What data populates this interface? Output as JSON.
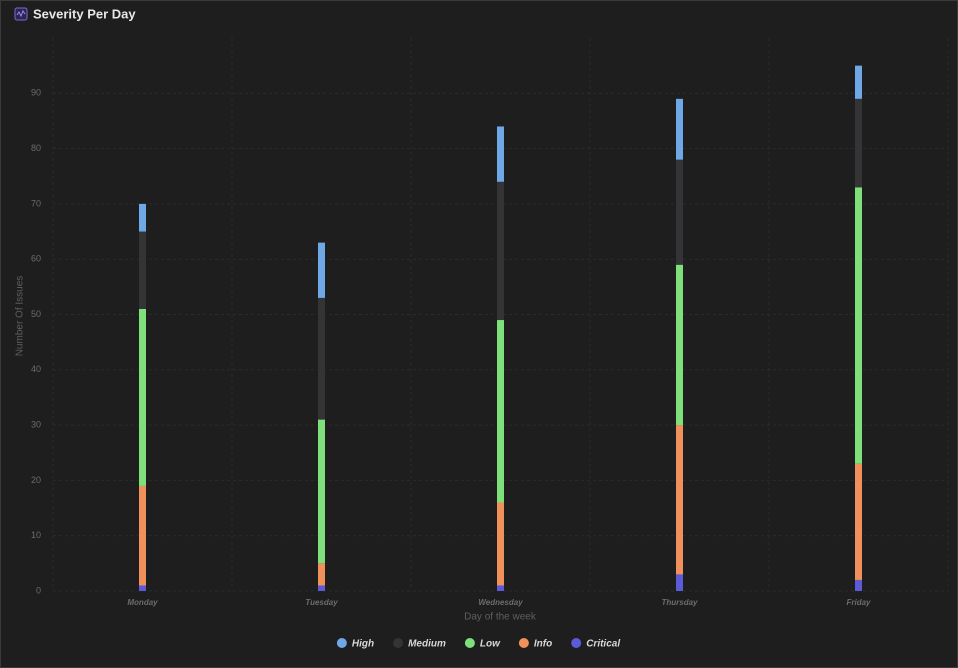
{
  "chart_data": {
    "type": "bar",
    "stacked": true,
    "title": "Severity Per Day",
    "x_label": "Day of the week",
    "y_label": "Number Of Issues",
    "categories": [
      "Monday",
      "Tuesday",
      "Wednesday",
      "Thursday",
      "Friday"
    ],
    "series": [
      {
        "name": "High",
        "color": "#6ea8e6",
        "values": [
          5,
          10,
          10,
          11,
          6
        ]
      },
      {
        "name": "Medium",
        "color": "#343437",
        "values": [
          14,
          22,
          25,
          19,
          16
        ]
      },
      {
        "name": "Low",
        "color": "#7fe07b",
        "values": [
          32,
          26,
          33,
          29,
          50
        ]
      },
      {
        "name": "Info",
        "color": "#f0915b",
        "values": [
          18,
          4,
          15,
          27,
          21
        ]
      },
      {
        "name": "Critical",
        "color": "#5b5bd8",
        "values": [
          1,
          1,
          1,
          3,
          2
        ]
      }
    ],
    "ylim": [
      0,
      100
    ],
    "yticks": [
      0,
      10,
      20,
      30,
      40,
      50,
      60,
      70,
      80,
      90
    ],
    "grid": true
  }
}
